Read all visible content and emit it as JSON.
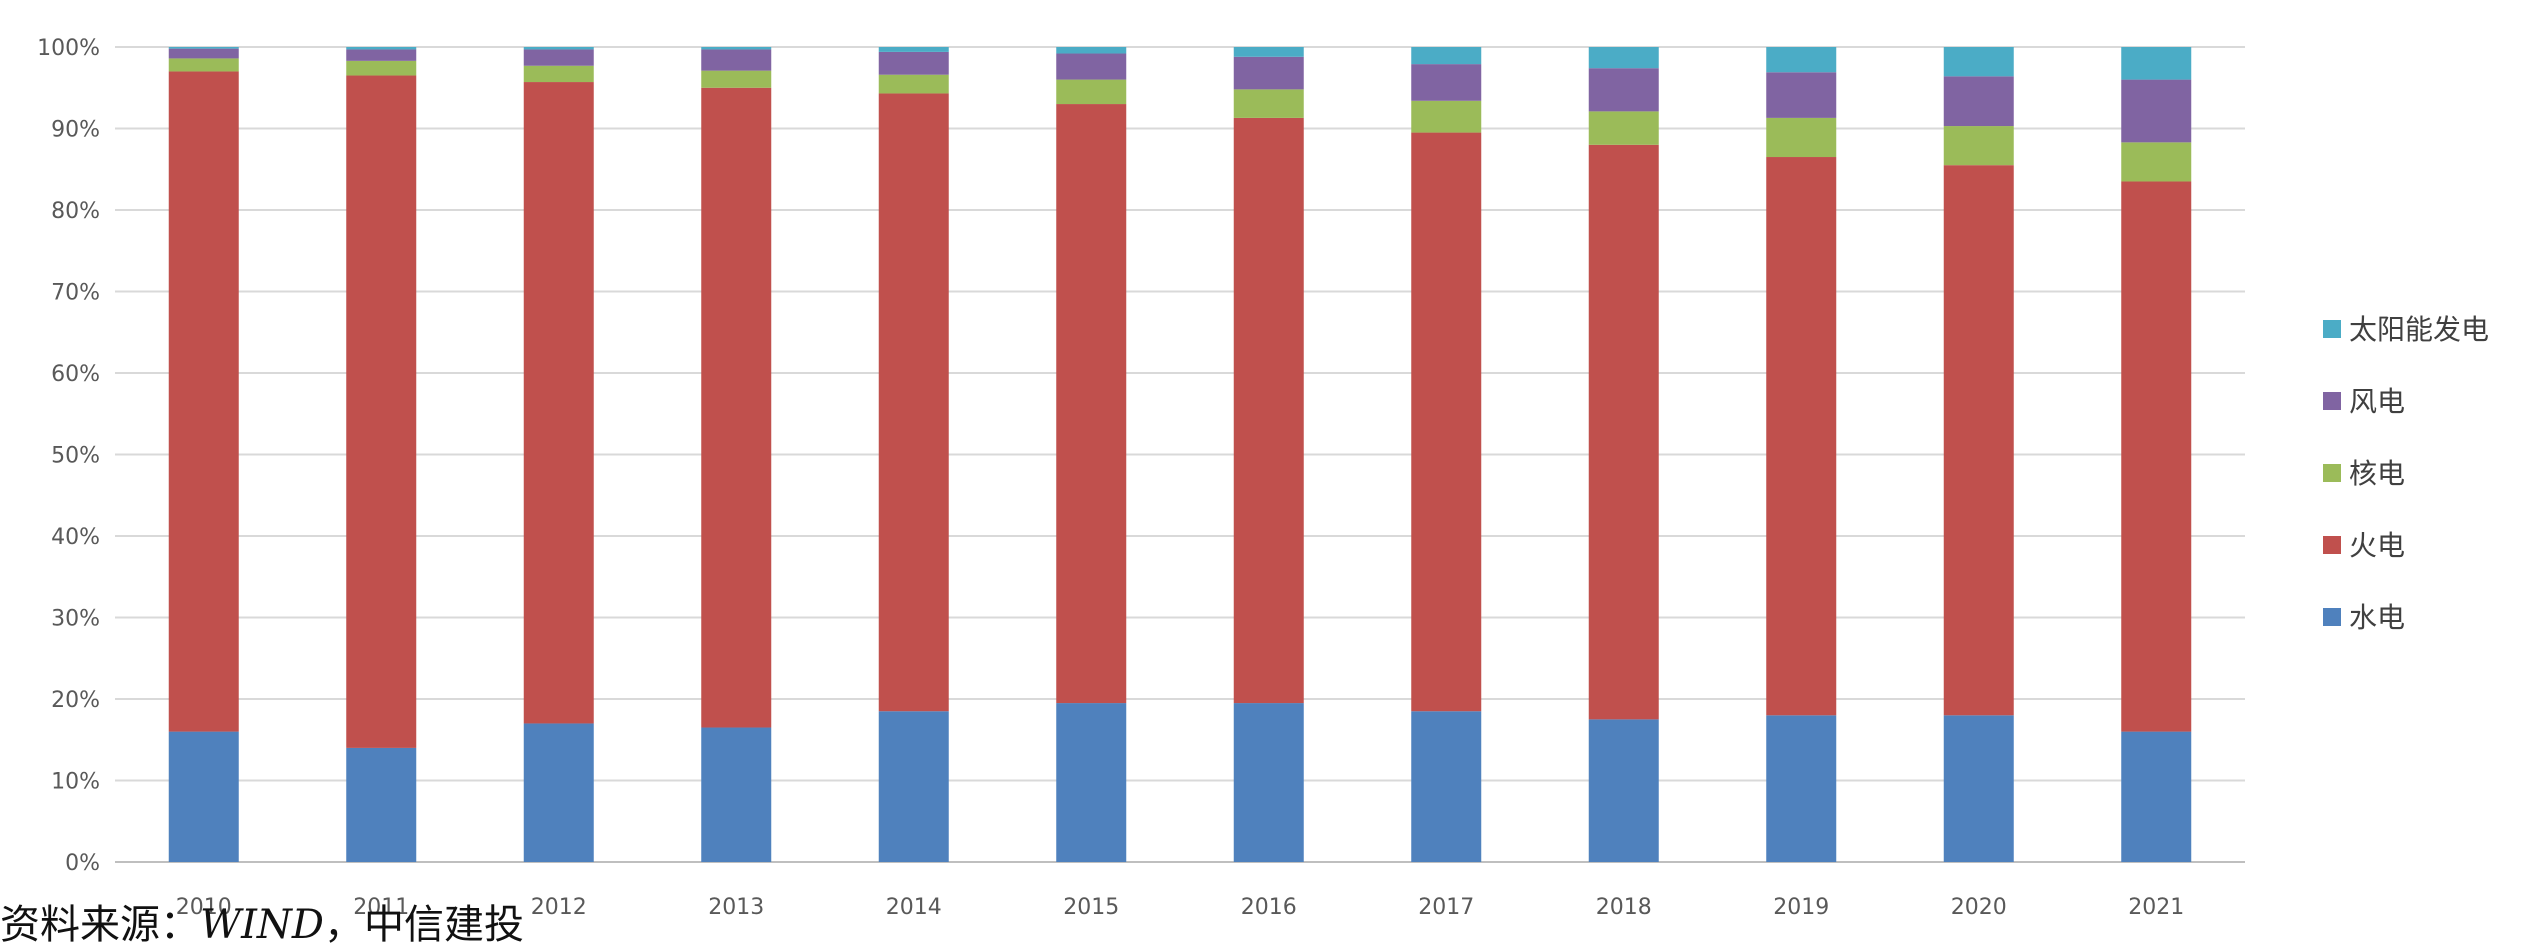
{
  "chart_data": {
    "type": "bar",
    "stacked": true,
    "normalized": true,
    "title": "",
    "xlabel": "",
    "ylabel": "",
    "ylim": [
      0,
      100
    ],
    "y_ticks": [
      "0%",
      "10%",
      "20%",
      "30%",
      "40%",
      "50%",
      "60%",
      "70%",
      "80%",
      "90%",
      "100%"
    ],
    "grid": true,
    "legend_position": "right",
    "categories": [
      "2010",
      "2011",
      "2012",
      "2013",
      "2014",
      "2015",
      "2016",
      "2017",
      "2018",
      "2019",
      "2020",
      "2021"
    ],
    "series": [
      {
        "name": "水电",
        "color": "#4F81BD",
        "values": [
          16.0,
          14.0,
          17.0,
          16.5,
          18.5,
          19.5,
          19.5,
          18.5,
          17.5,
          18.0,
          18.0,
          16.0
        ]
      },
      {
        "name": "火电",
        "color": "#C0504D",
        "values": [
          81.0,
          82.5,
          78.7,
          78.5,
          75.8,
          73.5,
          71.8,
          71.0,
          70.5,
          68.5,
          67.5,
          67.5
        ]
      },
      {
        "name": "核电",
        "color": "#9BBB59",
        "values": [
          1.6,
          1.8,
          2.0,
          2.1,
          2.3,
          3.0,
          3.5,
          3.9,
          4.1,
          4.8,
          4.8,
          4.8
        ]
      },
      {
        "name": "风电",
        "color": "#8064A2",
        "values": [
          1.2,
          1.4,
          2.0,
          2.6,
          2.8,
          3.2,
          4.0,
          4.5,
          5.3,
          5.6,
          6.1,
          7.7
        ]
      },
      {
        "name": "太阳能发电",
        "color": "#4BACC6",
        "values": [
          0.2,
          0.3,
          0.3,
          0.3,
          0.6,
          0.8,
          1.2,
          2.1,
          2.6,
          3.1,
          3.6,
          4.0
        ]
      }
    ]
  },
  "source_note": {
    "prefix": "资料来源：",
    "source": "WIND",
    "suffix": "，中信建投"
  }
}
